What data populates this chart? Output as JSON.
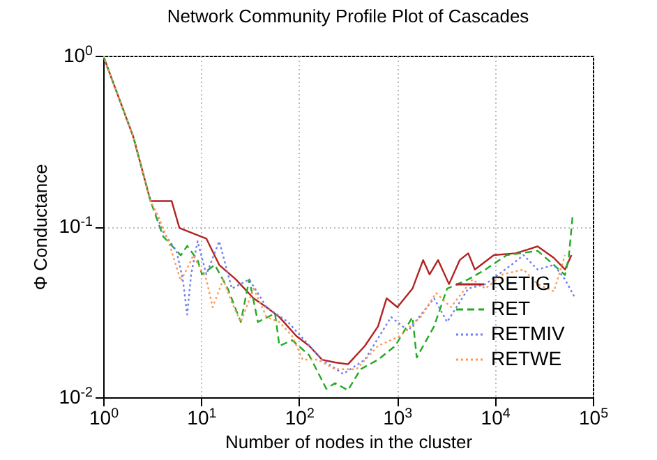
{
  "chart_data": {
    "type": "line",
    "title": "Network Community Profile Plot of Cascades",
    "xlabel": "Number of nodes in the cluster",
    "ylabel": "Φ Conductance",
    "log": "xy",
    "grid": true,
    "legend": "bottom right",
    "xlim": [
      1,
      100000
    ],
    "ylim": [
      0.01,
      1
    ],
    "xticks": [
      {
        "value": 1,
        "label": "10$^{0}$"
      },
      {
        "value": 10,
        "label": "10$^{1}$"
      },
      {
        "value": 100,
        "label": "10$^{2}$"
      },
      {
        "value": 1000,
        "label": "10$^{3}$"
      },
      {
        "value": 10000,
        "label": "10$^{4}$"
      },
      {
        "value": 100000,
        "label": "10$^{5}$"
      }
    ],
    "yticks": [
      {
        "value": 0.01,
        "label": "10$^{-2}$"
      },
      {
        "value": 0.1,
        "label": "10$^{-1}$"
      },
      {
        "value": 1,
        "label": "10$^{0}$"
      }
    ],
    "series": [
      {
        "name": "RETIG",
        "color": "#b22222",
        "line_style": "solid",
        "x": [
          1,
          2.03,
          3.04,
          5.0,
          6.0,
          11.3,
          15.3,
          22.6,
          34.3,
          46.5,
          62.9,
          94,
          127,
          172,
          233,
          316,
          470,
          640,
          784,
          1010,
          1440,
          1850,
          2150,
          2630,
          3400,
          4370,
          5340,
          6240,
          9760,
          16300,
          27300,
          40000,
          52000,
          60500
        ],
        "values": [
          1,
          0.335,
          0.141,
          0.141,
          0.098,
          0.085,
          0.0596,
          0.049,
          0.038,
          0.0337,
          0.0295,
          0.0228,
          0.02,
          0.0166,
          0.016,
          0.0156,
          0.02,
          0.026,
          0.038,
          0.0337,
          0.0433,
          0.0636,
          0.0524,
          0.0636,
          0.046,
          0.0636,
          0.0697,
          0.056,
          0.068,
          0.0697,
          0.0765,
          0.0655,
          0.056,
          0.068
        ]
      },
      {
        "name": "RET",
        "color": "#22aa22",
        "line_style": "dashed",
        "x": [
          1,
          2.03,
          3.04,
          4.1,
          6.2,
          7.2,
          9.2,
          10.2,
          13.8,
          18.7,
          25.4,
          31,
          38,
          56.8,
          63,
          85,
          127,
          190,
          233,
          316,
          425,
          640,
          960,
          1440,
          1590,
          2390,
          3250,
          5340,
          8000,
          13200,
          27300,
          40000,
          52000,
          56700,
          62300
        ],
        "values": [
          1,
          0.335,
          0.141,
          0.0874,
          0.0678,
          0.077,
          0.0636,
          0.0524,
          0.0596,
          0.0433,
          0.0276,
          0.049,
          0.0276,
          0.031,
          0.02,
          0.0216,
          0.0176,
          0.0112,
          0.0121,
          0.011,
          0.0146,
          0.0166,
          0.02,
          0.0295,
          0.0171,
          0.026,
          0.0433,
          0.049,
          0.056,
          0.068,
          0.072,
          0.0596,
          0.052,
          0.0655,
          0.1166
        ]
      },
      {
        "name": "RETMIV",
        "color": "#6f7ff0",
        "line_style": "dotted",
        "x": [
          1,
          2.03,
          3.04,
          4.1,
          5.6,
          6.5,
          7.2,
          7.9,
          9.2,
          11.3,
          15.3,
          20.6,
          31,
          46.5,
          77,
          104,
          172,
          282,
          470,
          870,
          1300,
          2390,
          3250,
          5340,
          8000,
          14700,
          19600,
          27300,
          40000,
          52000,
          66000
        ],
        "values": [
          1,
          0.335,
          0.141,
          0.093,
          0.072,
          0.049,
          0.0305,
          0.0524,
          0.082,
          0.0524,
          0.082,
          0.0433,
          0.049,
          0.0337,
          0.0276,
          0.0228,
          0.0166,
          0.0137,
          0.0166,
          0.0295,
          0.0245,
          0.038,
          0.0276,
          0.0433,
          0.046,
          0.0596,
          0.068,
          0.056,
          0.0596,
          0.049,
          0.038
        ]
      },
      {
        "name": "RETWE",
        "color": "#ff9955",
        "line_style": "dotted",
        "x": [
          1,
          2.03,
          3.04,
          3.7,
          4.8,
          6.2,
          7.5,
          8.3,
          11.3,
          13.1,
          16.8,
          20.6,
          25.4,
          34.3,
          46.5,
          62.9,
          85,
          109,
          155,
          233,
          385,
          640,
          1060,
          1750,
          2500,
          3550,
          5900,
          8000,
          12000,
          19600,
          27300,
          40000,
          52000
        ],
        "values": [
          1,
          0.335,
          0.141,
          0.113,
          0.077,
          0.048,
          0.0596,
          0.0678,
          0.049,
          0.0337,
          0.049,
          0.0358,
          0.0276,
          0.0433,
          0.0295,
          0.0276,
          0.0228,
          0.0166,
          0.0166,
          0.0146,
          0.0146,
          0.02,
          0.0228,
          0.0295,
          0.0408,
          0.0337,
          0.049,
          0.0433,
          0.0524,
          0.056,
          0.046,
          0.0417,
          0.068
        ]
      }
    ]
  }
}
